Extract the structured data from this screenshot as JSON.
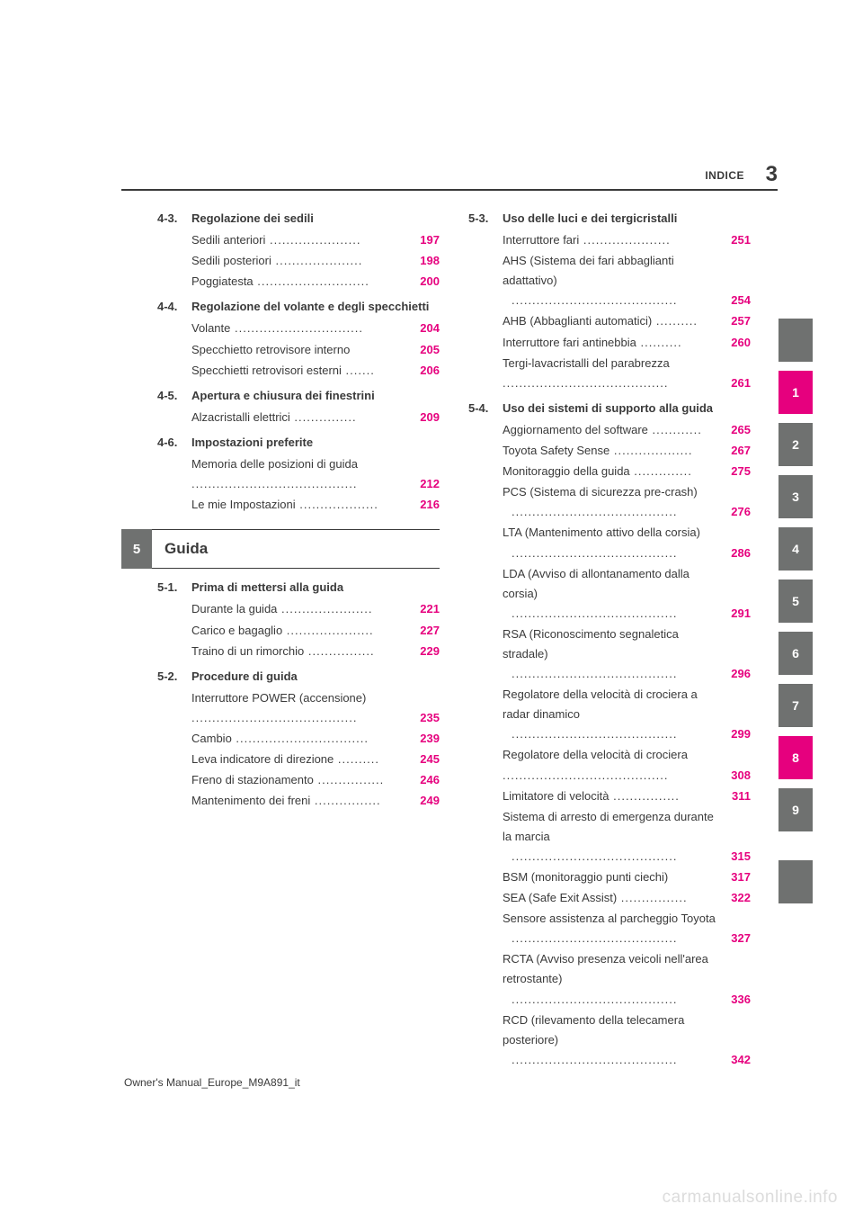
{
  "header": {
    "label": "INDICE",
    "page_number": "3"
  },
  "colors": {
    "text": "#3a3a3a",
    "page_ref": "#e6007e",
    "tab_gray": "#6f7170",
    "tab_magenta": "#e6007e",
    "watermark": "#dcdcdc"
  },
  "tabs": [
    {
      "n": "",
      "color": "#6f7170"
    },
    {
      "n": "1",
      "color": "#e6007e"
    },
    {
      "n": "2",
      "color": "#6f7170"
    },
    {
      "n": "3",
      "color": "#6f7170"
    },
    {
      "n": "4",
      "color": "#6f7170"
    },
    {
      "n": "5",
      "color": "#6f7170"
    },
    {
      "n": "6",
      "color": "#6f7170"
    },
    {
      "n": "7",
      "color": "#6f7170"
    },
    {
      "n": "8",
      "color": "#e6007e"
    },
    {
      "n": "9",
      "color": "#6f7170"
    },
    {
      "n": "",
      "color": "#6f7170"
    }
  ],
  "chapter": {
    "num": "5",
    "title": "Guida"
  },
  "left_sections": [
    {
      "num": "4-3.",
      "title": "Regolazione dei sedili",
      "entries": [
        {
          "t": "Sedili anteriori",
          "p": "197"
        },
        {
          "t": "Sedili posteriori",
          "p": "198"
        },
        {
          "t": "Poggiatesta",
          "p": "200"
        }
      ]
    },
    {
      "num": "4-4.",
      "title": "Regolazione del volante e degli specchietti",
      "entries": [
        {
          "t": "Volante",
          "p": "204"
        },
        {
          "t": "Specchietto retrovisore interno",
          "p": "205",
          "nodots": true
        },
        {
          "t": "Specchietti retrovisori esterni",
          "p": "206"
        }
      ]
    },
    {
      "num": "4-5.",
      "title": "Apertura e chiusura dei finestrini",
      "entries": [
        {
          "t": "Alzacristalli elettrici",
          "p": "209"
        }
      ]
    },
    {
      "num": "4-6.",
      "title": "Impostazioni preferite",
      "entries": [
        {
          "t": "Memoria delle posizioni di guida",
          "p": "212",
          "wrap": true
        },
        {
          "t": "Le mie Impostazioni",
          "p": "216"
        }
      ]
    }
  ],
  "left_sections_after": [
    {
      "num": "5-1.",
      "title": "Prima di mettersi alla guida",
      "entries": [
        {
          "t": "Durante la guida",
          "p": "221"
        },
        {
          "t": "Carico e bagaglio",
          "p": "227"
        },
        {
          "t": "Traino di un rimorchio",
          "p": "229"
        }
      ]
    },
    {
      "num": "5-2.",
      "title": "Procedure di guida",
      "entries": [
        {
          "t": "Interruttore POWER (accensione)",
          "p": "235",
          "wrap": true
        },
        {
          "t": "Cambio",
          "p": "239"
        },
        {
          "t": "Leva indicatore di direzione",
          "p": "245"
        },
        {
          "t": "Freno di stazionamento",
          "p": "246"
        },
        {
          "t": "Mantenimento dei freni",
          "p": "249"
        }
      ]
    }
  ],
  "right_sections": [
    {
      "num": "5-3.",
      "title": "Uso delle luci e dei tergicristalli",
      "entries": [
        {
          "t": "Interruttore fari",
          "p": "251"
        },
        {
          "t": "AHS (Sistema dei fari abbaglianti adattativo)",
          "p": "254",
          "wrap": true,
          "hang": true
        },
        {
          "t": "AHB (Abbaglianti automatici)",
          "p": "257"
        },
        {
          "t": "Interruttore fari antinebbia",
          "p": "260"
        },
        {
          "t": "Tergi-lavacristalli del parabrezza",
          "p": "261",
          "wrap": true
        }
      ]
    },
    {
      "num": "5-4.",
      "title": "Uso dei sistemi di supporto alla guida",
      "entries": [
        {
          "t": "Aggiornamento del software",
          "p": "265"
        },
        {
          "t": "Toyota Safety Sense",
          "p": "267"
        },
        {
          "t": "Monitoraggio della guida",
          "p": "275"
        },
        {
          "t": "PCS (Sistema di sicurezza pre-crash)",
          "p": "276",
          "wrap": true,
          "hang": true
        },
        {
          "t": "LTA (Mantenimento attivo della corsia)",
          "p": "286",
          "wrap": true,
          "hang": true
        },
        {
          "t": "LDA (Avviso di allontanamento dalla corsia)",
          "p": "291",
          "wrap": true,
          "hang": true
        },
        {
          "t": "RSA (Riconoscimento segnaletica stradale)",
          "p": "296",
          "wrap": true,
          "hang": true
        },
        {
          "t": "Regolatore della velocità di crociera a radar dinamico",
          "p": "299",
          "wrap": true,
          "hang": true
        },
        {
          "t": "Regolatore della velocità di crociera",
          "p": "308",
          "wrap": true
        },
        {
          "t": "Limitatore di velocità",
          "p": "311"
        },
        {
          "t": "Sistema di arresto di emergenza durante la marcia",
          "p": "315",
          "wrap": true,
          "hang": true
        },
        {
          "t": "BSM (monitoraggio punti ciechi)",
          "p": "317",
          "nodots": true
        },
        {
          "t": "SEA (Safe Exit Assist)",
          "p": "322"
        },
        {
          "t": "Sensore assistenza al parcheggio Toyota",
          "p": "327",
          "wrap": true,
          "hang": true
        },
        {
          "t": "RCTA (Avviso presenza veicoli nell'area retrostante)",
          "p": "336",
          "wrap": true,
          "hang": true
        },
        {
          "t": "RCD (rilevamento della telecamera posteriore)",
          "p": "342",
          "wrap": true,
          "hang": true
        }
      ]
    }
  ],
  "footer": "Owner's Manual_Europe_M9A891_it",
  "watermark": "carmanualsonline.info"
}
